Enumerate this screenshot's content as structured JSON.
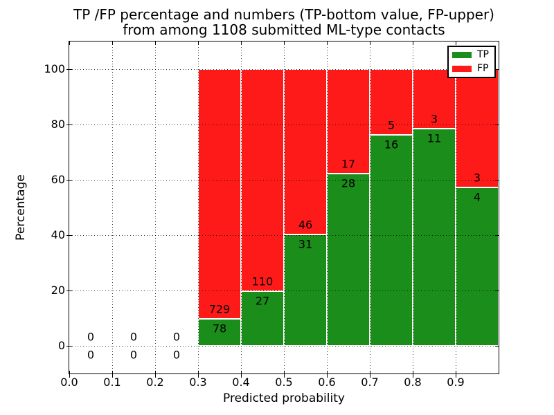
{
  "chart_data": {
    "type": "bar",
    "stacked": true,
    "title_lines": [
      "TP /FP percentage and numbers (TP-bottom value, FP-upper)",
      "from among 1108 submitted ML-type contacts"
    ],
    "xlabel": "Predicted probability",
    "ylabel": "Percentage",
    "xlim": [
      0.0,
      1.0
    ],
    "ylim": [
      -10,
      110
    ],
    "xticks": [
      "0.0",
      "0.1",
      "0.2",
      "0.3",
      "0.4",
      "0.5",
      "0.6",
      "0.7",
      "0.8",
      "0.9"
    ],
    "yticks": [
      0,
      20,
      40,
      60,
      80,
      100
    ],
    "grid": "dotted",
    "legend": {
      "position": "upper right",
      "entries": [
        {
          "label": "TP",
          "color": "#1a8d1a"
        },
        {
          "label": "FP",
          "color": "#ff1a1a"
        }
      ]
    },
    "series": [
      {
        "name": "TP",
        "values": [
          0,
          0,
          0,
          78,
          27,
          31,
          28,
          16,
          11,
          4
        ]
      },
      {
        "name": "FP",
        "values": [
          0,
          0,
          0,
          729,
          110,
          46,
          17,
          5,
          3,
          3
        ]
      }
    ],
    "bins": [
      {
        "x0": 0.0,
        "x1": 0.1,
        "tp": 0,
        "fp": 0,
        "tp_pct": 0
      },
      {
        "x0": 0.1,
        "x1": 0.2,
        "tp": 0,
        "fp": 0,
        "tp_pct": 0
      },
      {
        "x0": 0.2,
        "x1": 0.3,
        "tp": 0,
        "fp": 0,
        "tp_pct": 0
      },
      {
        "x0": 0.3,
        "x1": 0.4,
        "tp": 78,
        "fp": 729,
        "tp_pct": 9.67
      },
      {
        "x0": 0.4,
        "x1": 0.5,
        "tp": 27,
        "fp": 110,
        "tp_pct": 19.71
      },
      {
        "x0": 0.5,
        "x1": 0.6,
        "tp": 31,
        "fp": 46,
        "tp_pct": 40.26
      },
      {
        "x0": 0.6,
        "x1": 0.7,
        "tp": 28,
        "fp": 17,
        "tp_pct": 62.22
      },
      {
        "x0": 0.7,
        "x1": 0.8,
        "tp": 16,
        "fp": 5,
        "tp_pct": 76.19
      },
      {
        "x0": 0.8,
        "x1": 0.9,
        "tp": 11,
        "fp": 3,
        "tp_pct": 78.57
      },
      {
        "x0": 0.9,
        "x1": 1.0,
        "tp": 4,
        "fp": 3,
        "tp_pct": 57.14
      }
    ]
  }
}
